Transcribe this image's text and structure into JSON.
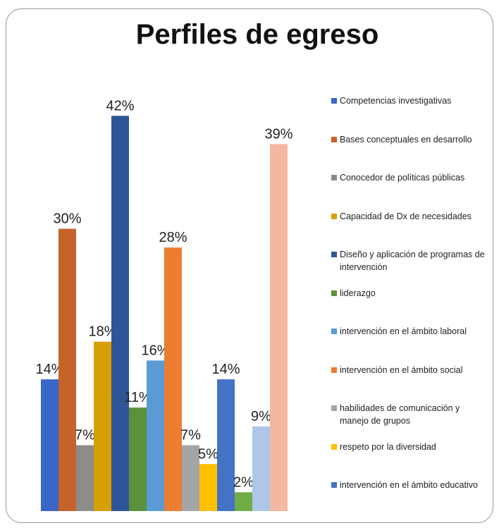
{
  "chart_data": {
    "type": "bar",
    "title": "Perfiles de egreso",
    "categories": [
      "Competencias investigativas",
      "Bases conceptuales en desarrollo",
      "Conocedor de políticas públicas",
      "Capacidad de Dx de necesidades",
      "Diseño y aplicación de programas de intervención",
      "liderazgo",
      "intervención en el ámbito laboral",
      "intervención en el ámbito social",
      "habilidades de comunicación y manejo de grupos",
      "respeto por la diversidad",
      "intervención en el ámbito educativo",
      null,
      null,
      null
    ],
    "values": [
      14,
      30,
      7,
      18,
      42,
      11,
      16,
      28,
      7,
      5,
      14,
      2,
      9,
      39
    ],
    "value_labels": [
      "14%",
      "30%",
      "7%",
      "18%",
      "42%",
      "11%",
      "16%",
      "28%",
      "7%",
      "5%",
      "14%",
      "2%",
      "9%",
      "39%"
    ],
    "colors": [
      "#3a66c8",
      "#c5632a",
      "#8c8c8c",
      "#d6a000",
      "#2e5597",
      "#5a913c",
      "#5b9bd5",
      "#ed7d31",
      "#a5a5a5",
      "#ffc000",
      "#4472c4",
      "#70ad47",
      "#aec7e8",
      "#f4b8a0"
    ],
    "legend": "right"
  }
}
